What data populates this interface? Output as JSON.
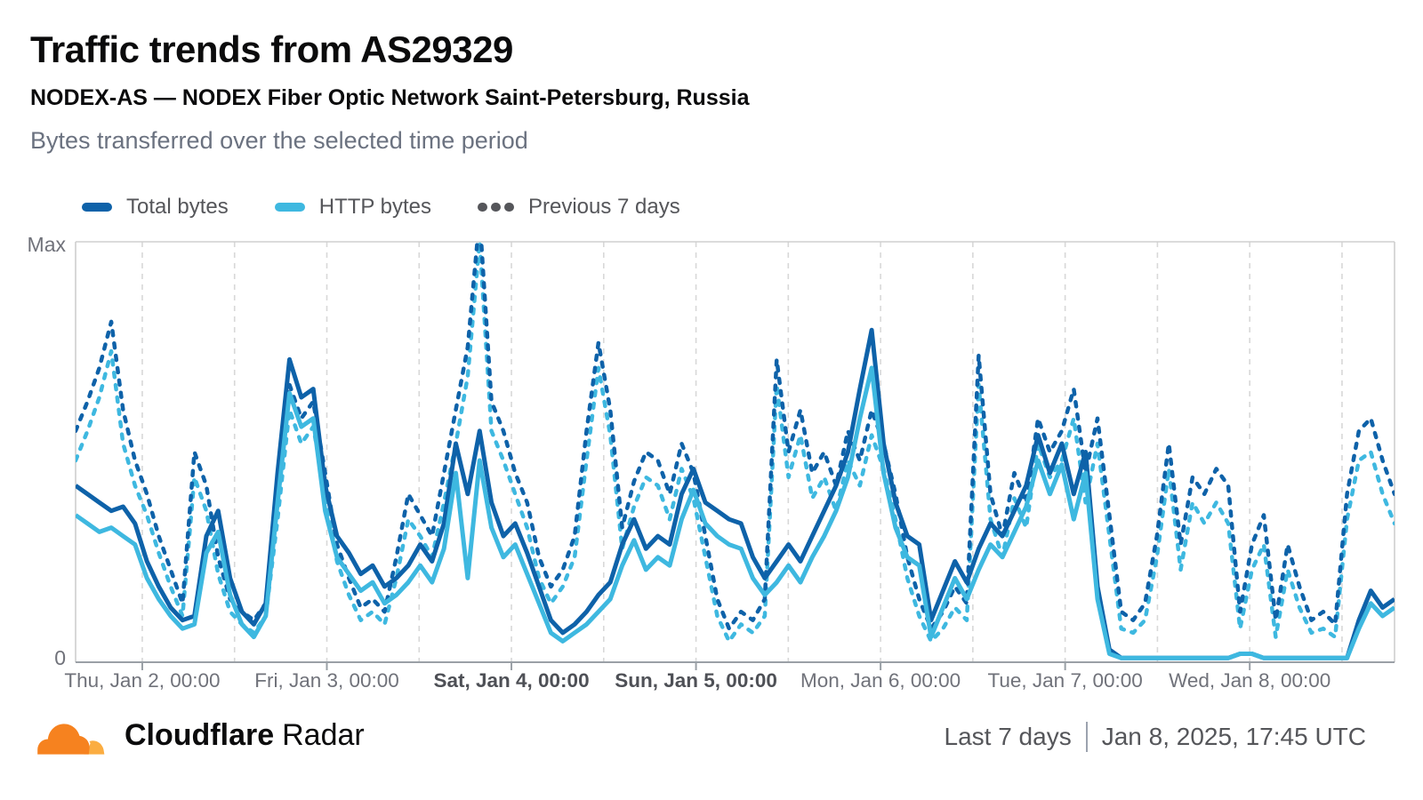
{
  "header": {
    "title": "Traffic trends from AS29329",
    "subtitle": "NODEX-AS — NODEX Fiber Optic Network Saint-Petersburg, Russia",
    "description": "Bytes transferred over the selected time period"
  },
  "legend": [
    {
      "label": "Total bytes",
      "style": "solid",
      "color": "#0e62a9"
    },
    {
      "label": "HTTP bytes",
      "style": "solid",
      "color": "#3eb8e0"
    },
    {
      "label": "Previous 7 days",
      "style": "dashed",
      "color": "#55565a"
    }
  ],
  "footer": {
    "brand_bold": "Cloudflare",
    "brand_regular": "Radar",
    "range_label": "Last 7 days",
    "timestamp": "Jan 8, 2025, 17:45 UTC"
  },
  "colors": {
    "total": "#0e62a9",
    "http": "#3eb8e0",
    "grid": "#d8d8d8",
    "plot_border": "#cfcfcf",
    "axis_line": "#9aa0a6",
    "logo_orange": "#F6821F",
    "logo_light_orange": "#FBAD41"
  },
  "chart_data": {
    "type": "line",
    "title": "Bytes transferred over the selected time period",
    "y_axis": {
      "max_label": "Max",
      "min_label": "0",
      "range": [
        0,
        100
      ],
      "unit": "percent of max"
    },
    "hours_span": 171.5,
    "points_per_series": 112,
    "grid": {
      "start_hour": 8.67,
      "interval_hours": 12
    },
    "x_ticks": [
      {
        "hour": 8.67,
        "label": "Thu, Jan 2, 00:00",
        "bold": false
      },
      {
        "hour": 32.67,
        "label": "Fri, Jan 3, 00:00",
        "bold": false
      },
      {
        "hour": 56.67,
        "label": "Sat, Jan 4, 00:00",
        "bold": true
      },
      {
        "hour": 80.67,
        "label": "Sun, Jan 5, 00:00",
        "bold": true
      },
      {
        "hour": 104.67,
        "label": "Mon, Jan 6, 00:00",
        "bold": false
      },
      {
        "hour": 128.67,
        "label": "Tue, Jan 7, 00:00",
        "bold": false
      },
      {
        "hour": 152.67,
        "label": "Wed, Jan 8, 00:00",
        "bold": false
      }
    ],
    "series": [
      {
        "name": "Previous 7 days (HTTP bytes)",
        "color": "#3eb8e0",
        "dashed": true,
        "values": [
          48,
          55,
          63,
          74,
          52,
          42,
          35,
          26,
          18,
          11,
          44,
          36,
          21,
          12,
          9,
          7,
          11,
          34,
          60,
          52,
          56,
          40,
          24,
          16,
          10,
          12,
          9,
          20,
          34,
          30,
          25,
          38,
          52,
          68,
          100,
          55,
          48,
          40,
          32,
          20,
          14,
          18,
          25,
          48,
          70,
          54,
          27,
          37,
          44,
          42,
          34,
          46,
          39,
          25,
          11,
          5,
          9,
          7,
          11,
          66,
          44,
          54,
          39,
          44,
          36,
          48,
          42,
          54,
          46,
          34,
          20,
          11,
          5,
          8,
          13,
          10,
          66,
          34,
          25,
          39,
          32,
          52,
          44,
          48,
          58,
          38,
          52,
          30,
          8,
          7,
          10,
          25,
          46,
          22,
          38,
          33,
          38,
          33,
          8,
          22,
          28,
          6,
          22,
          13,
          7,
          8,
          6,
          34,
          48,
          50,
          40,
          33
        ]
      },
      {
        "name": "Previous 7 days (Total bytes)",
        "color": "#0e62a9",
        "dashed": true,
        "values": [
          55,
          62,
          70,
          81,
          60,
          48,
          40,
          30,
          22,
          14,
          50,
          42,
          25,
          15,
          12,
          10,
          14,
          40,
          66,
          58,
          62,
          45,
          28,
          20,
          13,
          15,
          12,
          25,
          40,
          35,
          30,
          45,
          60,
          75,
          106,
          62,
          55,
          45,
          38,
          25,
          18,
          22,
          30,
          55,
          76,
          60,
          32,
          43,
          50,
          48,
          40,
          52,
          45,
          30,
          15,
          8,
          12,
          10,
          15,
          72,
          50,
          60,
          45,
          50,
          42,
          55,
          48,
          60,
          52,
          40,
          25,
          15,
          8,
          12,
          18,
          14,
          73,
          40,
          30,
          45,
          38,
          58,
          50,
          55,
          65,
          45,
          58,
          35,
          12,
          10,
          14,
          30,
          52,
          28,
          44,
          40,
          46,
          42,
          12,
          28,
          35,
          10,
          28,
          18,
          10,
          12,
          9,
          40,
          55,
          58,
          48,
          40
        ]
      },
      {
        "name": "Total bytes",
        "color": "#0e62a9",
        "dashed": false,
        "values": [
          42,
          40,
          38,
          36,
          37,
          33,
          24,
          18,
          13,
          10,
          11,
          30,
          36,
          20,
          12,
          9,
          14,
          45,
          72,
          63,
          65,
          42,
          30,
          26,
          21,
          23,
          18,
          20,
          23,
          28,
          24,
          33,
          52,
          40,
          55,
          38,
          30,
          33,
          26,
          18,
          10,
          7,
          9,
          12,
          16,
          19,
          28,
          34,
          27,
          30,
          28,
          40,
          46,
          38,
          36,
          34,
          33,
          25,
          20,
          24,
          28,
          24,
          30,
          36,
          42,
          50,
          65,
          79,
          52,
          38,
          30,
          28,
          10,
          17,
          24,
          19,
          27,
          33,
          30,
          36,
          42,
          54,
          45,
          52,
          40,
          50,
          18,
          3,
          1,
          1,
          1,
          1,
          1,
          1,
          1,
          1,
          1,
          1,
          2,
          2,
          1,
          1,
          1,
          1,
          1,
          1,
          1,
          1,
          10,
          17,
          13,
          15
        ]
      },
      {
        "name": "HTTP bytes",
        "color": "#3eb8e0",
        "dashed": false,
        "values": [
          35,
          33,
          31,
          32,
          30,
          28,
          20,
          15,
          11,
          8,
          9,
          26,
          31,
          16,
          9,
          6,
          11,
          38,
          64,
          56,
          58,
          36,
          25,
          21,
          17,
          19,
          14,
          16,
          19,
          23,
          19,
          27,
          45,
          20,
          48,
          32,
          25,
          28,
          21,
          14,
          7,
          5,
          7,
          9,
          12,
          15,
          23,
          29,
          22,
          25,
          23,
          34,
          41,
          33,
          30,
          28,
          27,
          20,
          16,
          19,
          23,
          19,
          25,
          30,
          36,
          44,
          58,
          70,
          45,
          32,
          25,
          23,
          6,
          13,
          20,
          15,
          22,
          28,
          25,
          31,
          37,
          48,
          40,
          47,
          34,
          45,
          15,
          2,
          1,
          1,
          1,
          1,
          1,
          1,
          1,
          1,
          1,
          1,
          2,
          2,
          1,
          1,
          1,
          1,
          1,
          1,
          1,
          1,
          8,
          14,
          11,
          13
        ]
      }
    ]
  }
}
